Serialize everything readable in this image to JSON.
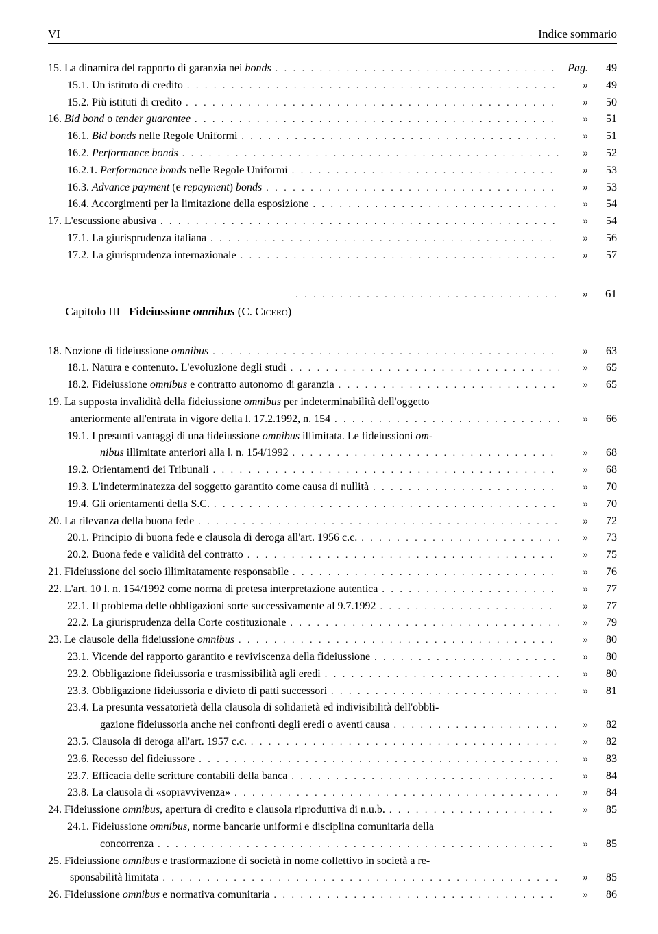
{
  "header": {
    "left": "VI",
    "right": "Indice sommario"
  },
  "pagSymbol": "Pag.",
  "quoteSymbol": "»",
  "chapter": {
    "prefix": "Capitolo III",
    "titleBold": "Fideiussione ",
    "titleBoldItalic": "omnibus",
    "author": " (C. Cicero)",
    "page": "61"
  },
  "entries1": [
    {
      "indent": 0,
      "num": "15.",
      "text": "La dinamica del rapporto di garanzia nei ",
      "italicTail": "bonds",
      "sym": "Pag.",
      "page": "49"
    },
    {
      "indent": 1,
      "num": "15.1.",
      "text": "Un istituto di credito",
      "page": "49"
    },
    {
      "indent": 1,
      "num": "15.2.",
      "text": "Più istituti di credito",
      "page": "50"
    },
    {
      "indent": 0,
      "num": "16.",
      "italicText": "Bid bond ",
      "text": "o ",
      "italicTail": "tender guarantee",
      "page": "51"
    },
    {
      "indent": 1,
      "num": "16.1.",
      "italicText": "Bid bonds ",
      "text": "nelle Regole Uniformi",
      "page": "51"
    },
    {
      "indent": 1,
      "num": "16.2.",
      "italicText": "Performance bonds",
      "text": "",
      "page": "52"
    },
    {
      "indent": 1,
      "num": "16.2.1.",
      "italicText": "Performance bonds ",
      "text": "nelle Regole Uniformi",
      "page": "53"
    },
    {
      "indent": 1,
      "num": "16.3.",
      "italicText": "Advance payment ",
      "text": "(e ",
      "italicMid": "repayment",
      "textTail": ") ",
      "italicTail": "bonds",
      "page": "53"
    },
    {
      "indent": 1,
      "num": "16.4.",
      "text": "Accorgimenti per la limitazione della esposizione",
      "page": "54"
    },
    {
      "indent": 0,
      "num": "17.",
      "text": "L'escussione abusiva",
      "page": "54"
    },
    {
      "indent": 1,
      "num": "17.1.",
      "text": "La giurisprudenza italiana",
      "page": "56"
    },
    {
      "indent": 1,
      "num": "17.2.",
      "text": "La giurisprudenza internazionale",
      "page": "57"
    }
  ],
  "entries2": [
    {
      "indent": 0,
      "num": "18.",
      "text": "Nozione di fideiussione ",
      "italicTail": "omnibus",
      "page": "63"
    },
    {
      "indent": 1,
      "num": "18.1.",
      "text": "Natura e contenuto. L'evoluzione degli studi",
      "page": "65"
    },
    {
      "indent": 1,
      "num": "18.2.",
      "text": "Fideiussione ",
      "italicMid": "omnibus",
      "textTail": " e contratto autonomo di garanzia",
      "page": "65"
    },
    {
      "indent": 0,
      "num": "19.",
      "wrap": true,
      "line1": "La supposta invalidità della fideiussione <i>omnibus</i> per indeterminabilità dell'oggetto",
      "line2": "anteriormente all'entrata in vigore della l. 17.2.1992, n. 154",
      "page": "66"
    },
    {
      "indent": 1,
      "num": "19.1.",
      "wrap": true,
      "line1": "I presunti vantaggi di una fideiussione <i>omnibus</i> illimitata. Le fideiussioni <i>om-</i>",
      "line2": "<i>nibus</i> illimitate anteriori alla l. n. 154/1992",
      "page": "68"
    },
    {
      "indent": 1,
      "num": "19.2.",
      "text": "Orientamenti dei Tribunali",
      "page": "68"
    },
    {
      "indent": 1,
      "num": "19.3.",
      "text": "L'indeterminatezza del soggetto garantito come causa di nullità",
      "page": "70"
    },
    {
      "indent": 1,
      "num": "19.4.",
      "text": "Gli orientamenti della S.C.",
      "page": "70"
    },
    {
      "indent": 0,
      "num": "20.",
      "text": "La rilevanza della buona fede",
      "page": "72"
    },
    {
      "indent": 1,
      "num": "20.1.",
      "text": "Principio di buona fede e clausola di deroga all'art. 1956 c.c.",
      "page": "73"
    },
    {
      "indent": 1,
      "num": "20.2.",
      "text": "Buona fede e validità del contratto",
      "page": "75"
    },
    {
      "indent": 0,
      "num": "21.",
      "text": "Fideiussione del socio illimitatamente responsabile",
      "page": "76"
    },
    {
      "indent": 0,
      "num": "22.",
      "text": "L'art. 10 l. n. 154/1992 come norma di pretesa interpretazione autentica",
      "page": "77"
    },
    {
      "indent": 1,
      "num": "22.1.",
      "text": "Il problema delle obbligazioni sorte successivamente al 9.7.1992",
      "page": "77"
    },
    {
      "indent": 1,
      "num": "22.2.",
      "text": "La giurisprudenza della Corte costituzionale",
      "page": "79"
    },
    {
      "indent": 0,
      "num": "23.",
      "text": "Le clausole della fideiussione ",
      "italicTail": "omnibus",
      "page": "80"
    },
    {
      "indent": 1,
      "num": "23.1.",
      "text": "Vicende del rapporto garantito e reviviscenza della fideiussione",
      "page": "80"
    },
    {
      "indent": 1,
      "num": "23.2.",
      "text": "Obbligazione fideiussoria e trasmissibilità agli eredi",
      "page": "80"
    },
    {
      "indent": 1,
      "num": "23.3.",
      "text": "Obbligazione fideiussoria e divieto di patti successori",
      "page": "81"
    },
    {
      "indent": 1,
      "num": "23.4.",
      "wrap": true,
      "line1": "La presunta vessatorietà della clausola di solidarietà ed indivisibilità dell'obbli-",
      "line2": "gazione fideiussoria anche nei confronti degli eredi o aventi causa",
      "page": "82"
    },
    {
      "indent": 1,
      "num": "23.5.",
      "text": "Clausola di deroga all'art. 1957 c.c.",
      "page": "82"
    },
    {
      "indent": 1,
      "num": "23.6.",
      "text": "Recesso del fideiussore",
      "page": "83"
    },
    {
      "indent": 1,
      "num": "23.7.",
      "text": "Efficacia delle scritture contabili della banca",
      "page": "84"
    },
    {
      "indent": 1,
      "num": "23.8.",
      "text": "La clausola di «sopravvivenza»",
      "page": "84"
    },
    {
      "indent": 0,
      "num": "24.",
      "text": "Fideiussione ",
      "italicMid": "omnibus",
      "textTail": ", apertura di credito e clausola riproduttiva di n.u.b.",
      "page": "85"
    },
    {
      "indent": 1,
      "num": "24.1.",
      "wrap": true,
      "line1": "Fideiussione <i>omnibus</i>, norme bancarie uniformi e disciplina comunitaria della",
      "line2": "concorrenza",
      "page": "85"
    },
    {
      "indent": 0,
      "num": "25.",
      "wrap": true,
      "line1": "Fideiussione <i>omnibus</i> e trasformazione di società in nome collettivo in società a re-",
      "line2": "sponsabilità limitata",
      "page": "85"
    },
    {
      "indent": 0,
      "num": "26.",
      "text": "Fideiussione ",
      "italicMid": "omnibus",
      "textTail": " e normativa comunitaria",
      "page": "86"
    }
  ]
}
